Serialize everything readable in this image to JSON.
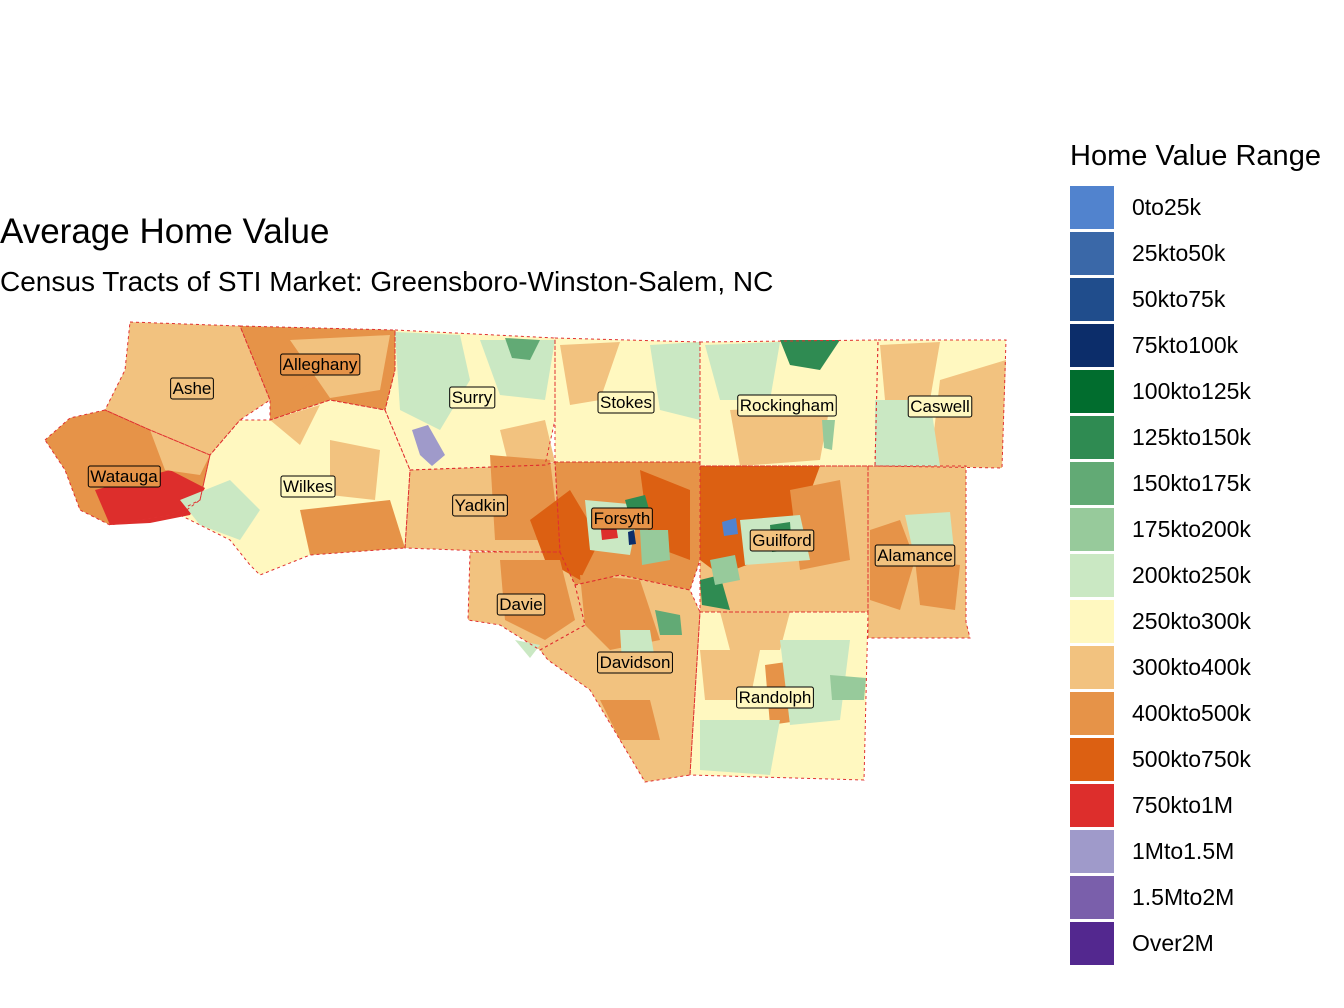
{
  "title": "Average Home Value",
  "subtitle": "Census Tracts of STI Market: Greensboro-Winston-Salem, NC",
  "legend": {
    "title": "Home Value Range",
    "items": [
      {
        "label": "0to25k",
        "color": "#5183ce"
      },
      {
        "label": "25kto50k",
        "color": "#3a68a8"
      },
      {
        "label": "50kto75k",
        "color": "#204d8c"
      },
      {
        "label": "75kto100k",
        "color": "#0c2d6a"
      },
      {
        "label": "100kto125k",
        "color": "#016d2e"
      },
      {
        "label": "125kto150k",
        "color": "#2f8b52"
      },
      {
        "label": "150kto175k",
        "color": "#62aa75"
      },
      {
        "label": "175kto200k",
        "color": "#97ca9b"
      },
      {
        "label": "200kto250k",
        "color": "#cae8c3"
      },
      {
        "label": "250kto300k",
        "color": "#fff8c0"
      },
      {
        "label": "300kto400k",
        "color": "#f2c27f"
      },
      {
        "label": "400kto500k",
        "color": "#e69348"
      },
      {
        "label": "500kto750k",
        "color": "#dc6012"
      },
      {
        "label": "750kto1M",
        "color": "#dd2e2c"
      },
      {
        "label": "1Mto1.5M",
        "color": "#9f9aca"
      },
      {
        "label": "1.5Mto2M",
        "color": "#7a5fab"
      },
      {
        "label": "Over2M",
        "color": "#53288f"
      }
    ]
  },
  "counties": [
    {
      "name": "Ashe",
      "fill": "#f2c27f"
    },
    {
      "name": "Alleghany",
      "fill": "#e69348"
    },
    {
      "name": "Surry",
      "fill": "#fff8c0"
    },
    {
      "name": "Stokes",
      "fill": "#fff8c0"
    },
    {
      "name": "Rockingham",
      "fill": "#fff8c0"
    },
    {
      "name": "Caswell",
      "fill": "#fff8c0"
    },
    {
      "name": "Watauga",
      "fill": "#e69348"
    },
    {
      "name": "Wilkes",
      "fill": "#fff8c0"
    },
    {
      "name": "Yadkin",
      "fill": "#f2c27f"
    },
    {
      "name": "Forsyth",
      "fill": "#e69348"
    },
    {
      "name": "Guilford",
      "fill": "#f2c27f"
    },
    {
      "name": "Alamance",
      "fill": "#f2c27f"
    },
    {
      "name": "Davie",
      "fill": "#f2c27f"
    },
    {
      "name": "Davidson",
      "fill": "#f2c27f"
    },
    {
      "name": "Randolph",
      "fill": "#fff8c0"
    }
  ],
  "border_color": "#e03030"
}
